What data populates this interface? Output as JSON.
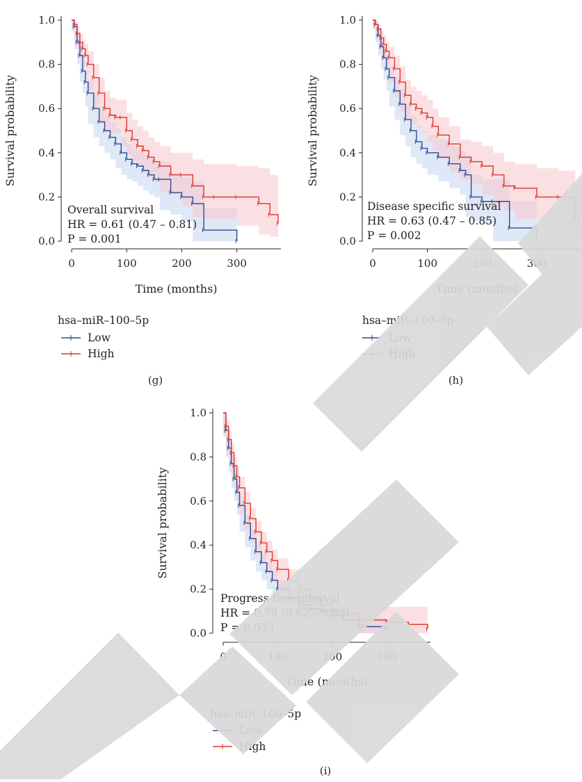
{
  "colors": {
    "low": "#2c4a94",
    "high": "#e2332a",
    "low_band": "#c5d6ee",
    "high_band": "#f7c6cc",
    "watermark": "#d9d9d9",
    "axis": "#222222"
  },
  "legend_title": "hsa–miR–100–5p",
  "legend_low": "Low",
  "legend_high": "High",
  "chart_data": [
    {
      "panel": "(g)",
      "type": "line",
      "kind": "kaplan-meier",
      "xlabel": "Time (months)",
      "ylabel": "Survival probability",
      "xlim": [
        0,
        380
      ],
      "ylim": [
        0,
        1.0
      ],
      "xticks": [
        "0",
        "100",
        "200",
        "300"
      ],
      "yticks": [
        "0.0",
        "0.2",
        "0.4",
        "0.6",
        "0.8",
        "1.0"
      ],
      "annotation": [
        "Overall survival",
        "HR = 0.61 (0.47 – 0.81)",
        "P = 0.001"
      ],
      "series": [
        {
          "name": "Low",
          "x": [
            0,
            5,
            10,
            15,
            20,
            25,
            30,
            40,
            50,
            60,
            70,
            80,
            90,
            100,
            110,
            120,
            130,
            140,
            150,
            160,
            180,
            200,
            220,
            240,
            300
          ],
          "y": [
            1.0,
            0.97,
            0.9,
            0.84,
            0.77,
            0.72,
            0.67,
            0.6,
            0.54,
            0.5,
            0.47,
            0.44,
            0.4,
            0.37,
            0.35,
            0.34,
            0.32,
            0.3,
            0.28,
            0.28,
            0.22,
            0.2,
            0.17,
            0.05,
            0.0
          ],
          "lower": [
            1.0,
            0.95,
            0.87,
            0.8,
            0.72,
            0.67,
            0.61,
            0.53,
            0.47,
            0.43,
            0.4,
            0.37,
            0.33,
            0.3,
            0.28,
            0.27,
            0.25,
            0.23,
            0.21,
            0.2,
            0.14,
            0.12,
            0.09,
            0.0,
            0.0
          ],
          "upper": [
            1.0,
            0.99,
            0.94,
            0.88,
            0.82,
            0.77,
            0.73,
            0.67,
            0.61,
            0.57,
            0.54,
            0.51,
            0.47,
            0.44,
            0.42,
            0.41,
            0.39,
            0.38,
            0.36,
            0.36,
            0.31,
            0.29,
            0.27,
            0.15,
            0.1
          ]
        },
        {
          "name": "High",
          "x": [
            0,
            5,
            10,
            15,
            20,
            25,
            30,
            40,
            50,
            60,
            70,
            80,
            90,
            100,
            110,
            120,
            130,
            140,
            150,
            160,
            180,
            200,
            220,
            240,
            260,
            300,
            340,
            360,
            375
          ],
          "y": [
            1.0,
            0.98,
            0.94,
            0.9,
            0.87,
            0.84,
            0.8,
            0.74,
            0.67,
            0.6,
            0.57,
            0.56,
            0.56,
            0.5,
            0.46,
            0.43,
            0.41,
            0.38,
            0.36,
            0.34,
            0.3,
            0.3,
            0.25,
            0.2,
            0.2,
            0.2,
            0.17,
            0.12,
            0.08
          ],
          "lower": [
            1.0,
            0.97,
            0.91,
            0.87,
            0.83,
            0.79,
            0.75,
            0.68,
            0.6,
            0.53,
            0.5,
            0.49,
            0.49,
            0.43,
            0.39,
            0.36,
            0.34,
            0.31,
            0.29,
            0.27,
            0.22,
            0.21,
            0.16,
            0.11,
            0.1,
            0.1,
            0.07,
            0.03,
            0.02
          ],
          "upper": [
            1.0,
            0.99,
            0.97,
            0.94,
            0.91,
            0.89,
            0.86,
            0.8,
            0.74,
            0.68,
            0.65,
            0.64,
            0.64,
            0.58,
            0.55,
            0.52,
            0.5,
            0.47,
            0.45,
            0.43,
            0.4,
            0.4,
            0.37,
            0.35,
            0.35,
            0.34,
            0.33,
            0.3,
            0.25
          ]
        }
      ]
    },
    {
      "panel": "(h)",
      "type": "line",
      "kind": "kaplan-meier",
      "xlabel": "Time (months)",
      "ylabel": "Survival probability",
      "xlim": [
        0,
        380
      ],
      "ylim": [
        0,
        1.0
      ],
      "xticks": [
        "0",
        "100",
        "200",
        "300"
      ],
      "yticks": [
        "0.0",
        "0.2",
        "0.4",
        "0.6",
        "0.8",
        "1.0"
      ],
      "annotation": [
        "Disease specific survival",
        "HR = 0.63 (0.47 – 0.85)",
        "P = 0.002"
      ],
      "series": [
        {
          "name": "Low",
          "x": [
            0,
            5,
            10,
            15,
            20,
            25,
            30,
            40,
            50,
            60,
            70,
            80,
            90,
            100,
            120,
            140,
            160,
            170,
            180,
            200,
            220,
            250,
            300
          ],
          "y": [
            1.0,
            0.98,
            0.93,
            0.88,
            0.83,
            0.78,
            0.74,
            0.68,
            0.62,
            0.55,
            0.5,
            0.45,
            0.42,
            0.4,
            0.38,
            0.35,
            0.32,
            0.3,
            0.2,
            0.18,
            0.18,
            0.06,
            0.0
          ],
          "lower": [
            1.0,
            0.96,
            0.9,
            0.84,
            0.78,
            0.73,
            0.68,
            0.61,
            0.55,
            0.48,
            0.43,
            0.38,
            0.35,
            0.33,
            0.3,
            0.27,
            0.24,
            0.21,
            0.11,
            0.09,
            0.08,
            0.0,
            0.0
          ],
          "upper": [
            1.0,
            1.0,
            0.96,
            0.92,
            0.88,
            0.83,
            0.79,
            0.74,
            0.69,
            0.62,
            0.57,
            0.52,
            0.5,
            0.48,
            0.46,
            0.43,
            0.41,
            0.39,
            0.3,
            0.28,
            0.28,
            0.18,
            0.1
          ]
        },
        {
          "name": "High",
          "x": [
            0,
            5,
            10,
            15,
            20,
            25,
            30,
            40,
            50,
            60,
            70,
            80,
            90,
            100,
            110,
            120,
            140,
            160,
            180,
            200,
            220,
            240,
            260,
            300,
            340,
            370,
            380
          ],
          "y": [
            1.0,
            0.98,
            0.96,
            0.92,
            0.89,
            0.86,
            0.83,
            0.78,
            0.72,
            0.66,
            0.62,
            0.6,
            0.58,
            0.56,
            0.52,
            0.48,
            0.44,
            0.38,
            0.36,
            0.34,
            0.3,
            0.25,
            0.24,
            0.2,
            0.2,
            0.1,
            0.1
          ],
          "lower": [
            1.0,
            0.97,
            0.93,
            0.89,
            0.85,
            0.82,
            0.78,
            0.72,
            0.65,
            0.59,
            0.55,
            0.53,
            0.51,
            0.49,
            0.45,
            0.41,
            0.37,
            0.31,
            0.28,
            0.26,
            0.21,
            0.16,
            0.14,
            0.1,
            0.09,
            0.02,
            0.02
          ],
          "upper": [
            1.0,
            0.99,
            0.98,
            0.95,
            0.93,
            0.9,
            0.88,
            0.84,
            0.79,
            0.73,
            0.7,
            0.68,
            0.66,
            0.64,
            0.6,
            0.56,
            0.52,
            0.46,
            0.45,
            0.43,
            0.4,
            0.36,
            0.35,
            0.33,
            0.32,
            0.25,
            0.25
          ]
        }
      ]
    },
    {
      "panel": "(i)",
      "type": "line",
      "kind": "kaplan-meier",
      "xlabel": "Time (months)",
      "ylabel": "Survival probability",
      "xlim": [
        0,
        380
      ],
      "ylim": [
        0,
        1.0
      ],
      "xticks": [
        "0",
        "100",
        "200",
        "300"
      ],
      "yticks": [
        "0.0",
        "0.2",
        "0.4",
        "0.6",
        "0.8",
        "1.0"
      ],
      "annotation": [
        "Progress free interval",
        "HR = 0.78 (0.62 – 0.98)",
        "P = 0.033"
      ],
      "series": [
        {
          "name": "Low",
          "x": [
            0,
            5,
            10,
            15,
            20,
            25,
            30,
            40,
            50,
            60,
            70,
            80,
            90,
            100,
            120,
            140,
            160,
            180,
            200,
            220,
            250,
            300
          ],
          "y": [
            1.0,
            0.92,
            0.84,
            0.77,
            0.7,
            0.64,
            0.58,
            0.5,
            0.43,
            0.37,
            0.32,
            0.28,
            0.24,
            0.2,
            0.16,
            0.13,
            0.11,
            0.1,
            0.08,
            0.06,
            0.03,
            0.02
          ],
          "lower": [
            1.0,
            0.89,
            0.8,
            0.73,
            0.66,
            0.6,
            0.54,
            0.46,
            0.39,
            0.33,
            0.28,
            0.24,
            0.2,
            0.16,
            0.12,
            0.09,
            0.07,
            0.06,
            0.04,
            0.02,
            0.0,
            0.0
          ],
          "upper": [
            1.0,
            0.95,
            0.88,
            0.81,
            0.74,
            0.68,
            0.62,
            0.54,
            0.47,
            0.41,
            0.36,
            0.32,
            0.28,
            0.24,
            0.2,
            0.17,
            0.15,
            0.14,
            0.12,
            0.1,
            0.07,
            0.06
          ]
        },
        {
          "name": "High",
          "x": [
            0,
            5,
            10,
            15,
            20,
            25,
            30,
            40,
            50,
            60,
            70,
            80,
            90,
            100,
            120,
            140,
            160,
            180,
            200,
            220,
            250,
            300,
            340,
            375
          ],
          "y": [
            1.0,
            0.94,
            0.88,
            0.82,
            0.76,
            0.71,
            0.66,
            0.59,
            0.52,
            0.46,
            0.41,
            0.37,
            0.33,
            0.29,
            0.24,
            0.2,
            0.16,
            0.13,
            0.1,
            0.09,
            0.06,
            0.05,
            0.04,
            0.02
          ],
          "lower": [
            1.0,
            0.91,
            0.84,
            0.78,
            0.72,
            0.66,
            0.61,
            0.54,
            0.47,
            0.41,
            0.36,
            0.32,
            0.28,
            0.24,
            0.19,
            0.15,
            0.11,
            0.08,
            0.05,
            0.04,
            0.02,
            0.0,
            0.0,
            0.0
          ],
          "upper": [
            1.0,
            0.97,
            0.92,
            0.86,
            0.8,
            0.76,
            0.71,
            0.64,
            0.57,
            0.51,
            0.46,
            0.42,
            0.38,
            0.34,
            0.29,
            0.25,
            0.21,
            0.18,
            0.15,
            0.14,
            0.12,
            0.12,
            0.12,
            0.12
          ]
        }
      ]
    }
  ]
}
